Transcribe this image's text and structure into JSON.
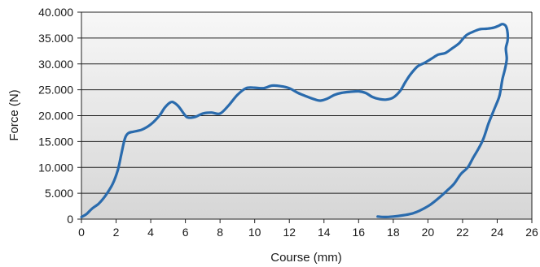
{
  "chart_data": {
    "type": "line",
    "xlabel": "Course (mm)",
    "ylabel": "Force (N)",
    "xlim": [
      0,
      26
    ],
    "ylim": [
      0,
      40
    ],
    "x_ticks": [
      0,
      2,
      4,
      6,
      8,
      10,
      12,
      14,
      16,
      18,
      20,
      22,
      24,
      26
    ],
    "x_tick_labels": [
      "0",
      "2",
      "4",
      "6",
      "8",
      "10",
      "12",
      "14",
      "16",
      "18",
      "20",
      "22",
      "24",
      "26"
    ],
    "y_ticks": [
      0,
      5,
      10,
      15,
      20,
      25,
      30,
      35,
      40
    ],
    "y_tick_labels": [
      "0",
      "5.000",
      "10.000",
      "15.000",
      "20.000",
      "25.000",
      "30.000",
      "35.000",
      "40.000"
    ],
    "grid": "horizontal",
    "background_gradient": [
      "#f7f7f7",
      "#d6d6d6"
    ],
    "series": [
      {
        "color": "#2a6bad",
        "points": [
          [
            0,
            0.4
          ],
          [
            0.3,
            1.0
          ],
          [
            0.6,
            2.0
          ],
          [
            1.0,
            3.0
          ],
          [
            1.4,
            4.6
          ],
          [
            1.8,
            6.8
          ],
          [
            2.1,
            9.5
          ],
          [
            2.3,
            12.5
          ],
          [
            2.5,
            15.5
          ],
          [
            2.7,
            16.6
          ],
          [
            3.0,
            16.9
          ],
          [
            3.5,
            17.3
          ],
          [
            4.0,
            18.3
          ],
          [
            4.5,
            20.0
          ],
          [
            4.8,
            21.5
          ],
          [
            5.1,
            22.5
          ],
          [
            5.3,
            22.6
          ],
          [
            5.6,
            21.8
          ],
          [
            6.0,
            20.0
          ],
          [
            6.2,
            19.6
          ],
          [
            6.6,
            19.8
          ],
          [
            7.0,
            20.4
          ],
          [
            7.5,
            20.6
          ],
          [
            8.0,
            20.4
          ],
          [
            8.5,
            22.0
          ],
          [
            9.0,
            24.0
          ],
          [
            9.5,
            25.3
          ],
          [
            10.0,
            25.4
          ],
          [
            10.5,
            25.3
          ],
          [
            11.0,
            25.8
          ],
          [
            11.5,
            25.7
          ],
          [
            12.0,
            25.3
          ],
          [
            12.5,
            24.4
          ],
          [
            13.0,
            23.7
          ],
          [
            13.5,
            23.1
          ],
          [
            13.8,
            22.9
          ],
          [
            14.2,
            23.3
          ],
          [
            14.6,
            24.0
          ],
          [
            15.0,
            24.4
          ],
          [
            15.5,
            24.6
          ],
          [
            16.0,
            24.7
          ],
          [
            16.4,
            24.4
          ],
          [
            16.8,
            23.6
          ],
          [
            17.2,
            23.2
          ],
          [
            17.6,
            23.1
          ],
          [
            18.0,
            23.5
          ],
          [
            18.4,
            24.8
          ],
          [
            18.7,
            26.5
          ],
          [
            19.0,
            28.0
          ],
          [
            19.4,
            29.5
          ],
          [
            19.8,
            30.2
          ],
          [
            20.2,
            31.0
          ],
          [
            20.6,
            31.8
          ],
          [
            21.0,
            32.1
          ],
          [
            21.4,
            33.0
          ],
          [
            21.8,
            34.0
          ],
          [
            22.2,
            35.5
          ],
          [
            22.6,
            36.2
          ],
          [
            23.0,
            36.7
          ],
          [
            23.4,
            36.8
          ],
          [
            23.8,
            37.0
          ],
          [
            24.1,
            37.4
          ],
          [
            24.3,
            37.7
          ],
          [
            24.5,
            37.3
          ],
          [
            24.6,
            36.0
          ],
          [
            24.6,
            34.5
          ],
          [
            24.5,
            33.0
          ],
          [
            24.55,
            31.0
          ],
          [
            24.45,
            29.0
          ],
          [
            24.3,
            27.0
          ],
          [
            24.2,
            25.0
          ],
          [
            24.1,
            23.5
          ],
          [
            23.8,
            21.0
          ],
          [
            23.5,
            18.5
          ],
          [
            23.2,
            15.5
          ],
          [
            22.9,
            13.5
          ],
          [
            22.6,
            11.8
          ],
          [
            22.3,
            10.0
          ],
          [
            21.9,
            8.7
          ],
          [
            21.5,
            6.8
          ],
          [
            21.1,
            5.5
          ],
          [
            20.6,
            4.0
          ],
          [
            20.1,
            2.7
          ],
          [
            19.5,
            1.6
          ],
          [
            19.0,
            1.0
          ],
          [
            18.5,
            0.7
          ],
          [
            18.0,
            0.5
          ],
          [
            17.5,
            0.4
          ],
          [
            17.1,
            0.5
          ]
        ]
      }
    ]
  }
}
